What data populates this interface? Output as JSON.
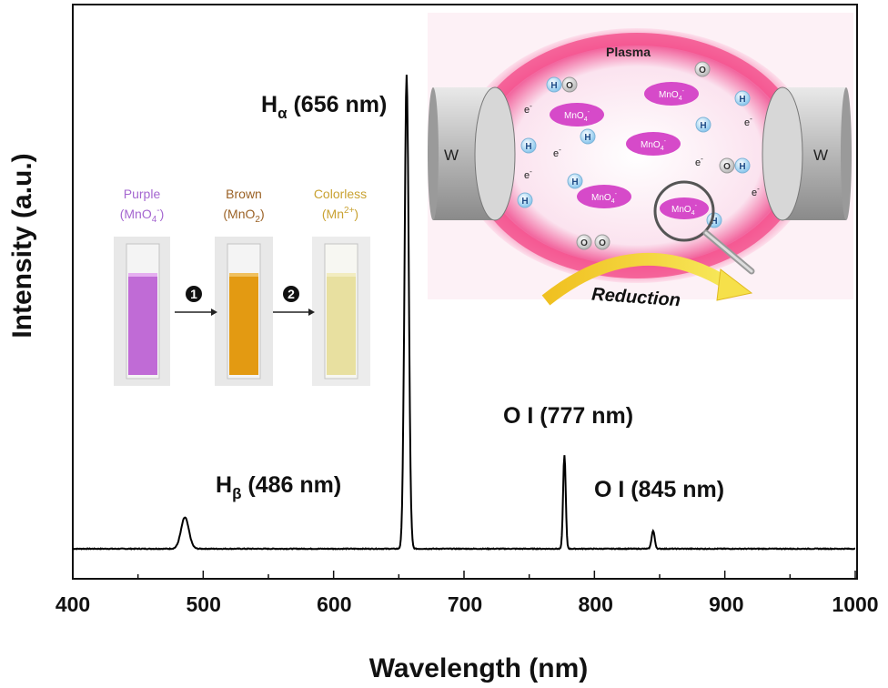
{
  "chart_data": {
    "type": "line",
    "xlabel": "Wavelength (nm)",
    "ylabel": "Intensity (a.u.)",
    "xlim": [
      400,
      1000
    ],
    "xticks": [
      "400",
      "500",
      "600",
      "700",
      "800",
      "900",
      "1000"
    ],
    "yticks": [],
    "grid": false,
    "baseline": 1,
    "peaks": [
      {
        "wavelength": 486,
        "intensity": 3.5,
        "width": 3.0
      },
      {
        "wavelength": 656,
        "intensity": 53,
        "width": 1.6
      },
      {
        "wavelength": 777,
        "intensity": 10.5,
        "width": 1.0
      },
      {
        "wavelength": 845,
        "intensity": 2.0,
        "width": 1.2
      }
    ],
    "annotations": [
      {
        "symbol": "H",
        "sub": "β",
        "text": " (486 nm)"
      },
      {
        "symbol": "H",
        "sub": "α",
        "text": " (656 nm)"
      },
      {
        "symbol": "O I",
        "sub": "",
        "text": " (777 nm)"
      },
      {
        "symbol": "O I",
        "sub": "",
        "text": " (845 nm)"
      }
    ]
  },
  "inset_cuvettes": {
    "colors": {
      "purple": "#c06bd6",
      "brown": "#e39a12",
      "colorless": "#e8e0a0"
    },
    "stages": [
      {
        "name": "Purple",
        "formula": "(MnO",
        "formula_sub": "4",
        "formula_sup": "-",
        "formula_end": ")"
      },
      {
        "name": "Brown",
        "formula": "(MnO",
        "formula_sub": "2",
        "formula_sup": "",
        "formula_end": ")"
      },
      {
        "name": "Colorless",
        "formula": "(Mn",
        "formula_sub": "",
        "formula_sup": "2+",
        "formula_end": ")"
      }
    ],
    "steps": [
      "1",
      "2"
    ]
  },
  "inset_plasma": {
    "plasma_label": "Plasma",
    "electrode_label": "W",
    "reduction_label": "Reduction",
    "molecule_label": "MnO",
    "molecule_sub": "4",
    "molecule_sup": "-",
    "hydrogen": "H",
    "oxygen": "O",
    "electron": "e",
    "electron_sup": "-"
  }
}
